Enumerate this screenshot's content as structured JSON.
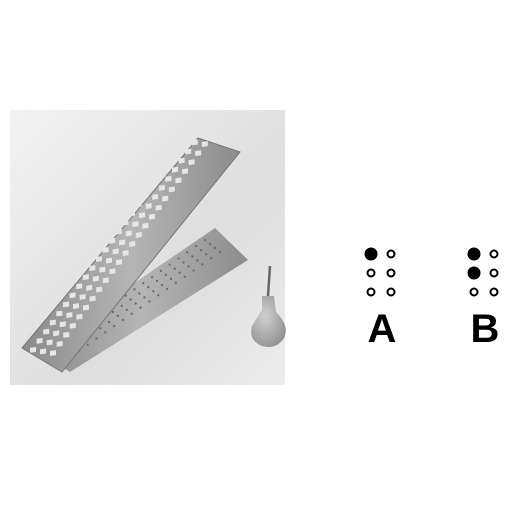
{
  "braille_letters": [
    {
      "letter": "A",
      "dots": [
        1
      ]
    },
    {
      "letter": "B",
      "dots": [
        1,
        2
      ]
    }
  ],
  "colors": {
    "background": "#ffffff",
    "photo_background": "#dcdcdc",
    "slate_metal": "#9a9a9a",
    "stylus": "#a8a8a8",
    "dot": "#000000"
  },
  "icons": [
    "braille-slate-icon",
    "stylus-icon"
  ]
}
